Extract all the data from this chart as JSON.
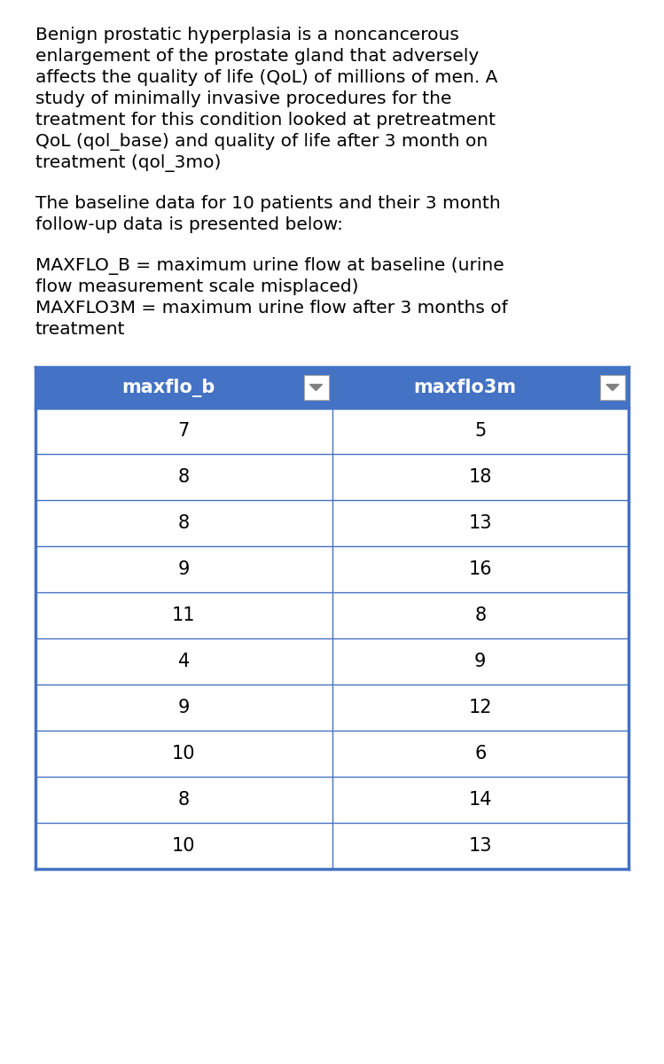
{
  "paragraph1_lines": [
    "Benign prostatic hyperplasia is a noncancerous",
    "enlargement of the prostate gland that adversely",
    "affects the quality of life (QoL) of millions of men. A",
    "study of minimally invasive procedures for the",
    "treatment for this condition looked at pretreatment",
    "QoL (qol_base) and quality of life after 3 month on",
    "treatment (qol_3mo)"
  ],
  "paragraph2_lines": [
    "The baseline data for 10 patients and their 3 month",
    "follow-up data is presented below:"
  ],
  "paragraph3a_lines": [
    "MAXFLO_B = maximum urine flow at baseline (urine",
    "flow measurement scale misplaced)"
  ],
  "paragraph3b_lines": [
    "MAXFLO3M = maximum urine flow after 3 months of",
    "treatment"
  ],
  "col1_header": "maxflo_b",
  "col2_header": "maxflo3m",
  "col1_data": [
    7,
    8,
    8,
    9,
    11,
    4,
    9,
    10,
    8,
    10
  ],
  "col2_data": [
    5,
    18,
    13,
    16,
    8,
    9,
    12,
    6,
    14,
    13
  ],
  "header_bg_color": "#4472C4",
  "header_text_color": "#FFFFFF",
  "header_font_size": 15,
  "data_font_size": 15,
  "text_font_size": 14.5,
  "row_line_color": "#4472C4",
  "table_border_color": "#4472C4",
  "bg_color": "#FFFFFF"
}
